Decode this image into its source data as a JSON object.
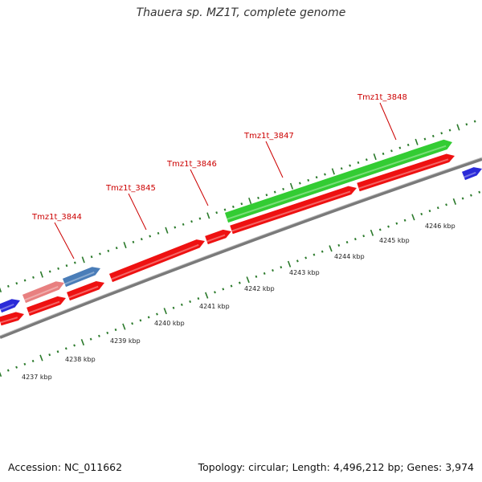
{
  "title": "Thauera sp. MZ1T, complete genome",
  "footer": {
    "accession": "Accession: NC_011662",
    "info": "Topology: circular; Length: 4,496,212 bp; Genes: 3,974"
  },
  "colors": {
    "backbone": "#7a7a7a",
    "forward_gene": "#2a2ad8",
    "reverse_gene": "#ee1111",
    "highlight_gene": "#33cc33",
    "pseudo_gene": "#4a7db8",
    "pseudo_gene_light": "#e88080",
    "tick": "#2b7a2b",
    "label": "#cc0000"
  },
  "kbp_labels": [
    "4237 kbp",
    "4238 kbp",
    "4239 kbp",
    "4240 kbp",
    "4241 kbp",
    "4242 kbp",
    "4243 kbp",
    "4244 kbp",
    "4245 kbp",
    "4246 kbp"
  ],
  "gene_labels": [
    "Tmz1t_3844",
    "Tmz1t_3845",
    "Tmz1t_3846",
    "Tmz1t_3847",
    "Tmz1t_3848"
  ]
}
